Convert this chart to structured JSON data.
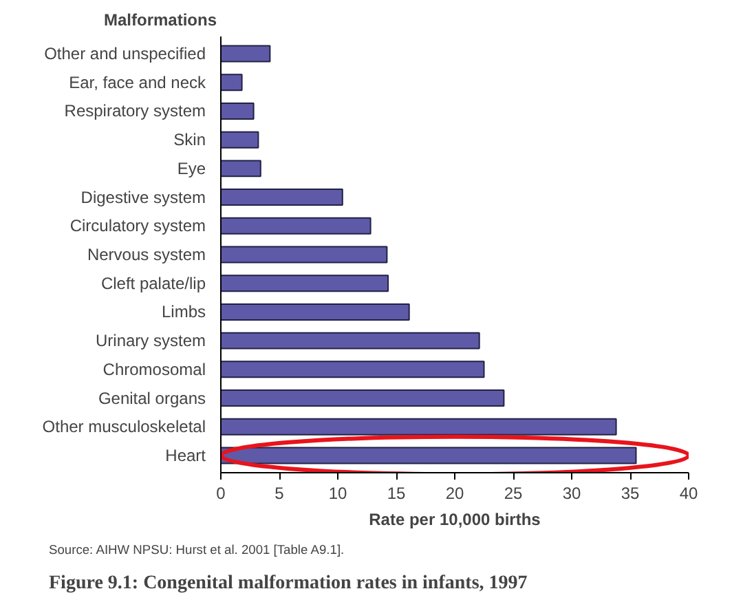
{
  "chart_data": {
    "type": "bar",
    "orientation": "horizontal",
    "title": "Figure 9.1: Congenital malformation rates in infants, 1997",
    "ylabel": "Malformations",
    "xlabel": "Rate per 10,000 births",
    "categories": [
      "Other and unspecified",
      "Ear, face and neck",
      "Respiratory system",
      "Skin",
      "Eye",
      "Digestive system",
      "Circulatory system",
      "Nervous system",
      "Cleft palate/lip",
      "Limbs",
      "Urinary system",
      "Chromosomal",
      "Genital organs",
      "Other musculoskeletal",
      "Heart"
    ],
    "values": [
      4.2,
      1.8,
      2.8,
      3.2,
      3.4,
      10.4,
      12.8,
      14.2,
      14.3,
      16.1,
      22.1,
      22.5,
      24.2,
      33.8,
      35.5
    ],
    "color": "#5f5aa8",
    "xlim": [
      0,
      40
    ],
    "xticks": [
      0,
      5,
      10,
      15,
      20,
      25,
      30,
      35,
      40
    ],
    "grid": false,
    "annotations": [
      "Source: AIHW NPSU: Hurst et al. 2001 [Table A9.1]."
    ]
  }
}
